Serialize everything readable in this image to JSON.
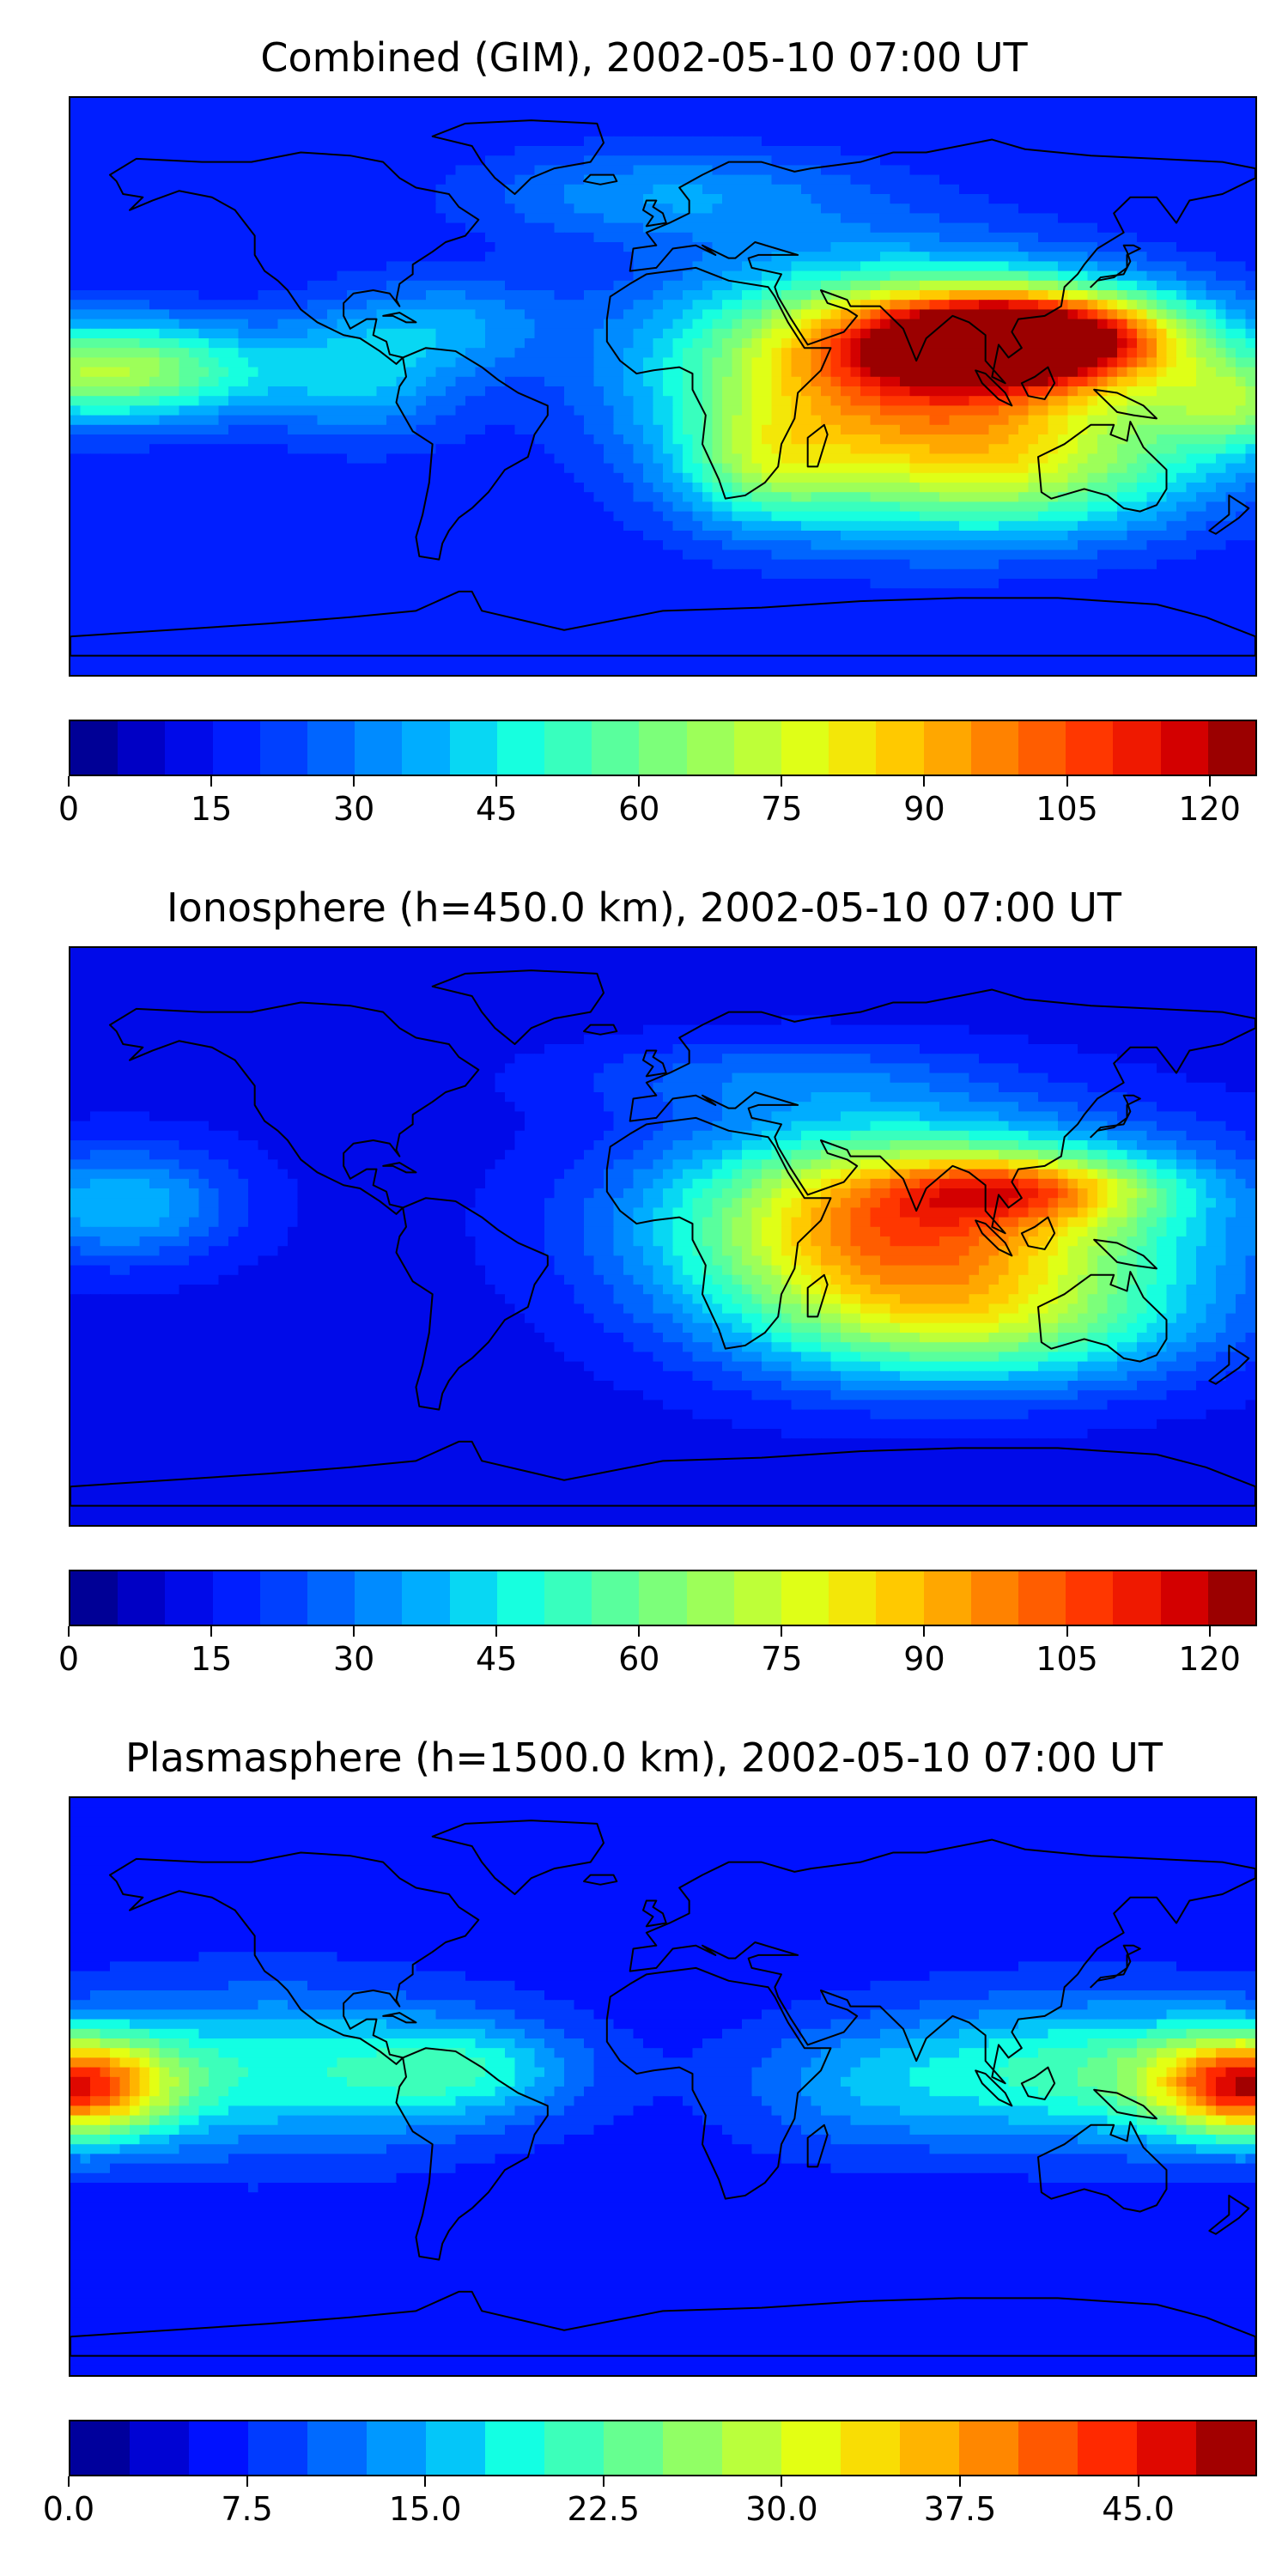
{
  "panels": [
    {
      "title": "Combined (GIM), 2002-05-10 07:00 UT",
      "colorbar": {
        "min": 0,
        "max": 125,
        "levels": 25,
        "ticks": [
          "0",
          "15",
          "30",
          "45",
          "60",
          "75",
          "90",
          "105",
          "120"
        ],
        "tick_values": [
          0,
          15,
          30,
          45,
          60,
          75,
          90,
          105,
          120
        ]
      },
      "map": {
        "base_level": 0.12,
        "blobs": [
          {
            "lon": 110,
            "lat": 15,
            "rlon": 45,
            "rlat": 14,
            "v": 0.75
          },
          {
            "lon": 95,
            "lat": 10,
            "rlon": 75,
            "rlat": 24,
            "v": 0.35
          },
          {
            "lon": 60,
            "lat": 0,
            "rlon": 65,
            "rlat": 38,
            "v": 0.38
          },
          {
            "lon": 110,
            "lat": -25,
            "rlon": 60,
            "rlat": 22,
            "v": 0.35
          },
          {
            "lon": 30,
            "lat": -25,
            "rlon": 25,
            "rlat": 18,
            "v": 0.2
          },
          {
            "lon": -170,
            "lat": 5,
            "rlon": 50,
            "rlat": 16,
            "v": 0.45
          },
          {
            "lon": 175,
            "lat": -5,
            "rlon": 25,
            "rlat": 15,
            "v": 0.3
          },
          {
            "lon": -90,
            "lat": 5,
            "rlon": 30,
            "rlat": 22,
            "v": 0.18
          },
          {
            "lon": -60,
            "lat": 20,
            "rlon": 30,
            "rlat": 15,
            "v": 0.12
          },
          {
            "lon": 0,
            "lat": 60,
            "rlon": 60,
            "rlat": 15,
            "v": 0.15
          }
        ]
      }
    },
    {
      "title": "Ionosphere  (h=450.0 km), 2002-05-10 07:00 UT",
      "colorbar": {
        "min": 0,
        "max": 125,
        "levels": 25,
        "ticks": [
          "0",
          "15",
          "30",
          "45",
          "60",
          "75",
          "90",
          "105",
          "120"
        ],
        "tick_values": [
          0,
          15,
          30,
          45,
          60,
          75,
          90,
          105,
          120
        ]
      },
      "map": {
        "base_level": 0.1,
        "blobs": [
          {
            "lon": 90,
            "lat": 5,
            "rlon": 80,
            "rlat": 28,
            "v": 0.45
          },
          {
            "lon": 110,
            "lat": 15,
            "rlon": 40,
            "rlat": 10,
            "v": 0.3
          },
          {
            "lon": 60,
            "lat": 0,
            "rlon": 60,
            "rlat": 35,
            "v": 0.3
          },
          {
            "lon": 100,
            "lat": -28,
            "rlon": 65,
            "rlat": 20,
            "v": 0.3
          },
          {
            "lon": -165,
            "lat": 10,
            "rlon": 35,
            "rlat": 18,
            "v": 0.22
          },
          {
            "lon": 30,
            "lat": 50,
            "rlon": 60,
            "rlat": 12,
            "v": 0.1
          }
        ]
      }
    },
    {
      "title": "Plasmasphere (h=1500.0 km), 2002-05-10 07:00 UT",
      "colorbar": {
        "min": 0,
        "max": 50,
        "levels": 20,
        "ticks": [
          "0.0",
          "7.5",
          "15.0",
          "22.5",
          "30.0",
          "37.5",
          "45.0"
        ],
        "tick_values": [
          0,
          7.5,
          15,
          22.5,
          30,
          37.5,
          45
        ]
      },
      "map": {
        "base_level": 0.12,
        "blobs": [
          {
            "lon": -180,
            "lat": 0,
            "rlon": 30,
            "rlat": 16,
            "v": 0.7
          },
          {
            "lon": 180,
            "lat": 0,
            "rlon": 30,
            "rlat": 16,
            "v": 0.7
          },
          {
            "lon": 130,
            "lat": 5,
            "rlon": 60,
            "rlat": 22,
            "v": 0.3
          },
          {
            "lon": -120,
            "lat": 5,
            "rlon": 65,
            "rlat": 25,
            "v": 0.25
          },
          {
            "lon": -60,
            "lat": 5,
            "rlon": 35,
            "rlat": 15,
            "v": 0.2
          },
          {
            "lon": 60,
            "lat": 0,
            "rlon": 40,
            "rlat": 20,
            "v": 0.12
          }
        ]
      }
    }
  ],
  "colormap": [
    "#00007f",
    "#0000c8",
    "#0011ff",
    "#0046ff",
    "#0082ff",
    "#00b8ff",
    "#13ffe3",
    "#46ffb0",
    "#7cff7a",
    "#b0ff46",
    "#e3ff13",
    "#ffd400",
    "#ff9e00",
    "#ff6400",
    "#ff2900",
    "#d70000",
    "#7f0000"
  ],
  "coastline_color": "#000000"
}
